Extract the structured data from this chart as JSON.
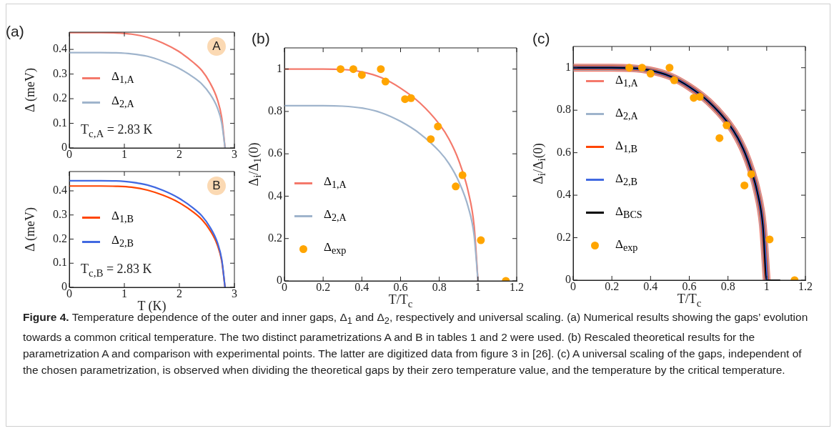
{
  "chart_data": [
    {
      "type": "line",
      "title": "(a)",
      "ylabel": "Δ (meV)",
      "xlim": [
        0,
        3
      ],
      "xticks": [
        0,
        1,
        2,
        3
      ],
      "ylim": [
        0,
        0.47
      ],
      "yticks": [
        0,
        0.1,
        0.2,
        0.3,
        0.4
      ],
      "legend": "center left",
      "annotations": [
        "T$_{c,A}$ = 2.83 K",
        "A"
      ],
      "series": [
        {
          "name": "Δ$_{1,A}$",
          "color": "#f4796b",
          "x": [
            0,
            0.57,
            0.85,
            1.13,
            1.42,
            1.7,
            1.98,
            2.26,
            2.41,
            2.55,
            2.69,
            2.77,
            2.83
          ],
          "values": [
            0.468,
            0.468,
            0.467,
            0.462,
            0.449,
            0.426,
            0.393,
            0.346,
            0.314,
            0.267,
            0.197,
            0.122,
            0
          ]
        },
        {
          "name": "Δ$_{2,A}$",
          "color": "#9fb4cc",
          "x": [
            0,
            0.57,
            0.85,
            1.13,
            1.42,
            1.7,
            1.98,
            2.26,
            2.41,
            2.55,
            2.69,
            2.77,
            2.83
          ],
          "values": [
            0.387,
            0.387,
            0.386,
            0.382,
            0.372,
            0.352,
            0.325,
            0.286,
            0.259,
            0.221,
            0.163,
            0.101,
            0
          ]
        }
      ]
    },
    {
      "type": "line",
      "xlabel": "T (K)",
      "ylabel": "Δ (meV)",
      "xlim": [
        0,
        3
      ],
      "xticks": [
        0,
        1,
        2,
        3
      ],
      "ylim": [
        0,
        0.48
      ],
      "yticks": [
        0,
        0.1,
        0.2,
        0.3,
        0.4
      ],
      "legend": "center left",
      "annotations": [
        "T$_{c,B}$ = 2.83 K",
        "B"
      ],
      "series": [
        {
          "name": "Δ$_{1,B}$",
          "color": "#ff4500",
          "x": [
            0,
            0.57,
            0.85,
            1.13,
            1.42,
            1.7,
            1.98,
            2.26,
            2.41,
            2.55,
            2.69,
            2.77,
            2.83
          ],
          "values": [
            0.42,
            0.42,
            0.419,
            0.415,
            0.403,
            0.382,
            0.353,
            0.311,
            0.281,
            0.239,
            0.176,
            0.109,
            0
          ]
        },
        {
          "name": "Δ$_{2,B}$",
          "color": "#4169e1",
          "x": [
            0,
            0.57,
            0.85,
            1.13,
            1.42,
            1.7,
            1.98,
            2.26,
            2.41,
            2.55,
            2.69,
            2.77,
            2.83
          ],
          "values": [
            0.442,
            0.442,
            0.441,
            0.436,
            0.424,
            0.402,
            0.371,
            0.327,
            0.296,
            0.252,
            0.186,
            0.115,
            0
          ]
        }
      ]
    },
    {
      "type": "line",
      "title": "(b)",
      "xlabel": "T/T$_{c}$",
      "ylabel": "Δ$_{i}$/Δ$_{1}$(0)",
      "xlim": [
        0,
        1.2
      ],
      "xticks": [
        0,
        0.2,
        0.4,
        0.6,
        0.8,
        1,
        1.2
      ],
      "ylim": [
        0,
        1.1
      ],
      "yticks": [
        0,
        0.2,
        0.4,
        0.6,
        0.8,
        1
      ],
      "legend": "bottom left",
      "series": [
        {
          "name": "Δ$_{1,A}$",
          "color": "#f4796b",
          "x": [
            0,
            0.2,
            0.3,
            0.4,
            0.5,
            0.6,
            0.7,
            0.8,
            0.85,
            0.9,
            0.95,
            0.98,
            1
          ],
          "values": [
            1,
            1,
            0.998,
            0.987,
            0.96,
            0.91,
            0.84,
            0.74,
            0.67,
            0.57,
            0.42,
            0.26,
            0
          ]
        },
        {
          "name": "Δ$_{2,A}$",
          "color": "#9fb4cc",
          "x": [
            0,
            0.2,
            0.3,
            0.4,
            0.5,
            0.6,
            0.7,
            0.8,
            0.85,
            0.9,
            0.95,
            0.98,
            1
          ],
          "values": [
            0.827,
            0.827,
            0.825,
            0.816,
            0.794,
            0.753,
            0.695,
            0.612,
            0.554,
            0.471,
            0.347,
            0.215,
            0
          ]
        },
        {
          "type": "scatter",
          "marker": "circle",
          "name": "Δ$_{exp}$",
          "color": "#ffa500",
          "x": [
            0.29,
            0.356,
            0.4,
            0.498,
            0.522,
            0.623,
            0.654,
            0.793,
            0.756,
            0.92,
            0.885,
            1.015,
            1.144
          ],
          "values": [
            1,
            1,
            0.972,
            1,
            0.941,
            0.858,
            0.863,
            0.729,
            0.669,
            0.499,
            0.446,
            0.192,
            0
          ]
        }
      ]
    },
    {
      "type": "line",
      "title": "(c)",
      "xlabel": "T/T$_{c}$",
      "ylabel": "Δ$_{i}$/Δ$_{i}$(0)",
      "xlim": [
        0,
        1.2
      ],
      "xticks": [
        0,
        0.2,
        0.4,
        0.6,
        0.8,
        1,
        1.2
      ],
      "ylim": [
        0,
        1.1
      ],
      "yticks": [
        0,
        0.2,
        0.4,
        0.6,
        0.8,
        1
      ],
      "legend": "center left",
      "series": [
        {
          "name": "Δ$_{1,A}$",
          "color": "#f4796b",
          "x": [
            0,
            0.2,
            0.3,
            0.4,
            0.5,
            0.6,
            0.7,
            0.8,
            0.85,
            0.9,
            0.95,
            0.98,
            1
          ],
          "values": [
            1,
            1,
            0.998,
            0.987,
            0.96,
            0.91,
            0.84,
            0.74,
            0.67,
            0.57,
            0.42,
            0.26,
            0
          ]
        },
        {
          "name": "Δ$_{2,A}$",
          "color": "#9fb4cc",
          "x": [
            0,
            0.2,
            0.3,
            0.4,
            0.5,
            0.6,
            0.7,
            0.8,
            0.85,
            0.9,
            0.95,
            0.98,
            1
          ],
          "values": [
            1,
            1,
            0.998,
            0.987,
            0.96,
            0.91,
            0.84,
            0.74,
            0.67,
            0.57,
            0.42,
            0.26,
            0
          ]
        },
        {
          "name": "Δ$_{1,B}$",
          "color": "#ff4500",
          "x": [
            0,
            0.2,
            0.3,
            0.4,
            0.5,
            0.6,
            0.7,
            0.8,
            0.85,
            0.9,
            0.95,
            0.98,
            1
          ],
          "values": [
            1,
            1,
            0.998,
            0.987,
            0.96,
            0.91,
            0.84,
            0.74,
            0.67,
            0.57,
            0.42,
            0.26,
            0
          ]
        },
        {
          "name": "Δ$_{2,B}$",
          "color": "#4169e1",
          "x": [
            0,
            0.2,
            0.3,
            0.4,
            0.5,
            0.6,
            0.7,
            0.8,
            0.85,
            0.9,
            0.95,
            0.98,
            1
          ],
          "values": [
            1,
            1,
            0.998,
            0.987,
            0.96,
            0.91,
            0.84,
            0.74,
            0.67,
            0.57,
            0.42,
            0.26,
            0
          ]
        },
        {
          "name": "Δ$_{BCS}$",
          "color": "#000000",
          "x": [
            0,
            0.2,
            0.3,
            0.4,
            0.5,
            0.6,
            0.7,
            0.8,
            0.85,
            0.9,
            0.95,
            0.98,
            1,
            1.07
          ],
          "values": [
            1,
            1,
            0.998,
            0.987,
            0.96,
            0.91,
            0.84,
            0.74,
            0.67,
            0.57,
            0.42,
            0.26,
            0,
            0
          ]
        },
        {
          "type": "scatter",
          "marker": "circle",
          "name": "Δ$_{exp}$",
          "color": "#ffa500",
          "x": [
            0.29,
            0.356,
            0.4,
            0.498,
            0.522,
            0.623,
            0.654,
            0.793,
            0.756,
            0.92,
            0.885,
            1.015,
            1.144
          ],
          "values": [
            1,
            1,
            0.972,
            1,
            0.941,
            0.858,
            0.863,
            0.729,
            0.669,
            0.499,
            0.446,
            0.192,
            0
          ]
        }
      ]
    },
    {
      "type": "other",
      "title": "Figure 4.",
      "annotations": [
        "Temperature dependence of the outer and inner gaps, Δ$_{1}$ and Δ$_{2}$, respectively and universal scaling. (a) Numerical results showing the gaps’ evolution towards a common critical temperature. The two distinct parametrizations A and B in tables 1 and 2 were used. (b) Rescaled theoretical results for the parametrization A and comparison with experimental points. The latter are digitized data from figure 3 in [26]. (c) A universal scaling of the gaps, independent of the chosen parametrization, is observed when dividing the theoretical gaps by their zero temperature value, and the temperature by the critical temperature."
      ]
    }
  ]
}
